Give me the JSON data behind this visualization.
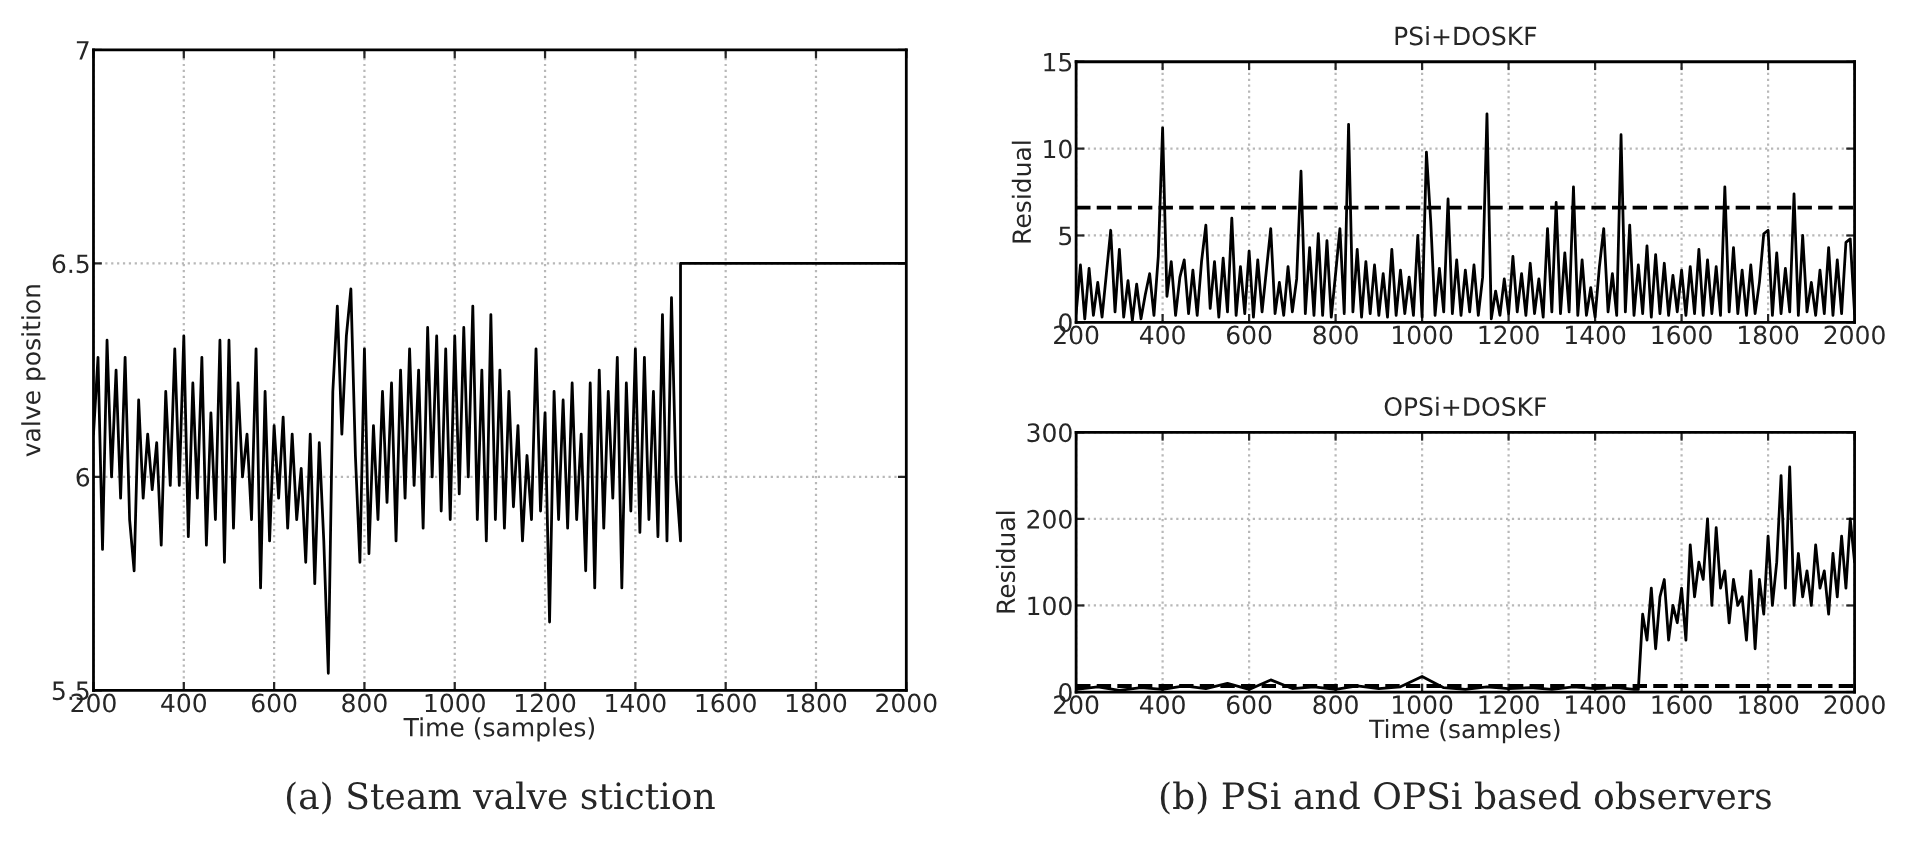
{
  "chart_data": [
    {
      "type": "line",
      "xlabel": "Time (samples)",
      "ylabel": "valve position",
      "xlim": [
        200,
        2000
      ],
      "ylim": [
        5.5,
        7
      ],
      "xticks": [
        200,
        400,
        600,
        800,
        1000,
        1200,
        1400,
        1600,
        1800,
        2000
      ],
      "yticks": [
        5.5,
        6,
        6.5,
        7
      ],
      "grid": true,
      "annotations": [
        "(a) Steam valve stiction"
      ],
      "series": [
        {
          "color": "#000000",
          "x": [
            200,
            210,
            220,
            230,
            240,
            250,
            260,
            270,
            280,
            290,
            300,
            310,
            320,
            330,
            340,
            350,
            360,
            370,
            380,
            390,
            400,
            410,
            420,
            430,
            440,
            450,
            460,
            470,
            480,
            490,
            500,
            510,
            520,
            530,
            540,
            550,
            560,
            570,
            580,
            590,
            600,
            610,
            620,
            630,
            640,
            650,
            660,
            670,
            680,
            690,
            700,
            710,
            720,
            730,
            740,
            750,
            760,
            770,
            780,
            790,
            800,
            810,
            820,
            830,
            840,
            850,
            860,
            870,
            880,
            890,
            900,
            910,
            920,
            930,
            940,
            950,
            960,
            970,
            980,
            990,
            1000,
            1010,
            1020,
            1030,
            1040,
            1050,
            1060,
            1070,
            1080,
            1090,
            1100,
            1110,
            1120,
            1130,
            1140,
            1150,
            1160,
            1170,
            1180,
            1190,
            1200,
            1210,
            1220,
            1230,
            1240,
            1250,
            1260,
            1270,
            1280,
            1290,
            1300,
            1310,
            1320,
            1330,
            1340,
            1350,
            1360,
            1370,
            1380,
            1390,
            1400,
            1410,
            1420,
            1430,
            1440,
            1450,
            1460,
            1470,
            1480,
            1490,
            1500,
            1500,
            2000
          ],
          "values": [
            6.1,
            6.28,
            5.83,
            6.32,
            6.0,
            6.25,
            5.95,
            6.28,
            5.9,
            5.78,
            6.18,
            5.95,
            6.1,
            5.97,
            6.08,
            5.84,
            6.2,
            5.98,
            6.3,
            5.98,
            6.33,
            5.86,
            6.22,
            5.95,
            6.28,
            5.84,
            6.15,
            5.9,
            6.32,
            5.8,
            6.32,
            5.88,
            6.22,
            6.0,
            6.1,
            5.9,
            6.3,
            5.74,
            6.2,
            5.85,
            6.12,
            5.95,
            6.14,
            5.88,
            6.1,
            5.9,
            6.02,
            5.8,
            6.1,
            5.75,
            6.08,
            5.85,
            5.54,
            6.2,
            6.4,
            6.1,
            6.33,
            6.44,
            6.05,
            5.8,
            6.3,
            5.82,
            6.12,
            5.9,
            6.2,
            5.94,
            6.22,
            5.85,
            6.25,
            5.95,
            6.3,
            5.98,
            6.25,
            5.88,
            6.35,
            6.0,
            6.33,
            5.92,
            6.3,
            5.9,
            6.33,
            5.96,
            6.35,
            6.0,
            6.4,
            5.9,
            6.25,
            5.85,
            6.38,
            5.9,
            6.25,
            5.88,
            6.2,
            5.93,
            6.12,
            5.85,
            6.05,
            5.9,
            6.3,
            5.92,
            6.15,
            5.66,
            6.2,
            5.9,
            6.18,
            5.88,
            6.22,
            5.9,
            6.1,
            5.78,
            6.22,
            5.74,
            6.25,
            5.88,
            6.2,
            5.95,
            6.28,
            5.74,
            6.22,
            5.92,
            6.3,
            5.87,
            6.28,
            5.9,
            6.2,
            5.86,
            6.38,
            5.85,
            6.42,
            6.0,
            5.85,
            6.5,
            6.5
          ]
        }
      ]
    },
    {
      "type": "line",
      "title": "PSi+DOSKF",
      "ylabel": "Residual",
      "xlim": [
        200,
        2000
      ],
      "ylim": [
        0,
        15
      ],
      "xticks": [
        200,
        400,
        600,
        800,
        1000,
        1200,
        1400,
        1600,
        1800,
        2000
      ],
      "yticks": [
        0,
        5,
        10,
        15
      ],
      "grid": true,
      "ref_lines": [
        {
          "axis": "y",
          "value": 6.6,
          "color": "#000000",
          "line_style": "dashed"
        }
      ],
      "series": [
        {
          "color": "#000000",
          "x": [
            200,
            210,
            220,
            230,
            240,
            250,
            260,
            270,
            280,
            290,
            300,
            310,
            320,
            330,
            340,
            350,
            360,
            370,
            380,
            390,
            400,
            410,
            420,
            430,
            440,
            450,
            460,
            470,
            480,
            490,
            500,
            510,
            520,
            530,
            540,
            550,
            560,
            570,
            580,
            590,
            600,
            610,
            620,
            630,
            640,
            650,
            660,
            670,
            680,
            690,
            700,
            710,
            720,
            730,
            740,
            750,
            760,
            770,
            780,
            790,
            800,
            810,
            820,
            830,
            840,
            850,
            860,
            870,
            880,
            890,
            900,
            910,
            920,
            930,
            940,
            950,
            960,
            970,
            980,
            990,
            1000,
            1010,
            1020,
            1030,
            1040,
            1050,
            1060,
            1070,
            1080,
            1090,
            1100,
            1110,
            1120,
            1130,
            1140,
            1150,
            1160,
            1170,
            1180,
            1190,
            1200,
            1210,
            1220,
            1230,
            1240,
            1250,
            1260,
            1270,
            1280,
            1290,
            1300,
            1310,
            1320,
            1330,
            1340,
            1350,
            1360,
            1370,
            1380,
            1390,
            1400,
            1410,
            1420,
            1430,
            1440,
            1450,
            1460,
            1470,
            1480,
            1490,
            1500,
            1510,
            1520,
            1530,
            1540,
            1550,
            1560,
            1570,
            1580,
            1590,
            1600,
            1610,
            1620,
            1630,
            1640,
            1650,
            1660,
            1670,
            1680,
            1690,
            1700,
            1710,
            1720,
            1730,
            1740,
            1750,
            1760,
            1770,
            1780,
            1790,
            1800,
            1810,
            1820,
            1830,
            1840,
            1850,
            1860,
            1870,
            1880,
            1890,
            1900,
            1910,
            1920,
            1930,
            1940,
            1950,
            1960,
            1970,
            1980,
            1990,
            2000
          ],
          "values": [
            0.5,
            3.3,
            0.2,
            3.1,
            0.4,
            2.3,
            0.3,
            2.8,
            5.3,
            0.6,
            4.2,
            0.3,
            2.4,
            0.1,
            2.2,
            0.2,
            1.6,
            2.8,
            0.4,
            3.8,
            11.2,
            1.5,
            3.5,
            0.4,
            2.6,
            3.6,
            0.5,
            3.0,
            0.4,
            3.5,
            5.6,
            0.8,
            3.5,
            0.3,
            3.7,
            0.6,
            6.0,
            0.4,
            3.2,
            0.5,
            4.1,
            0.3,
            3.6,
            0.6,
            3.0,
            5.4,
            0.5,
            2.3,
            0.4,
            3.2,
            0.6,
            2.5,
            8.7,
            0.5,
            4.3,
            0.4,
            5.1,
            0.4,
            4.7,
            0.3,
            2.8,
            5.4,
            0.5,
            11.4,
            0.6,
            4.2,
            0.3,
            3.5,
            0.5,
            3.3,
            0.4,
            2.8,
            0.3,
            4.2,
            0.4,
            3.0,
            0.5,
            2.6,
            0.4,
            5.0,
            0.3,
            9.8,
            5.8,
            0.4,
            3.1,
            0.6,
            7.1,
            0.5,
            3.6,
            0.4,
            3.0,
            0.6,
            3.3,
            0.4,
            2.6,
            12.0,
            0.2,
            1.8,
            0.4,
            2.5,
            0.5,
            3.8,
            0.6,
            2.8,
            0.4,
            3.4,
            0.5,
            2.5,
            0.3,
            5.4,
            0.6,
            6.9,
            0.5,
            4.0,
            0.6,
            7.8,
            0.4,
            3.6,
            0.4,
            2.0,
            0.3,
            3.2,
            5.4,
            0.6,
            2.8,
            0.4,
            10.8,
            0.6,
            5.6,
            0.4,
            3.3,
            0.5,
            4.4,
            0.3,
            3.9,
            0.5,
            3.4,
            0.4,
            2.7,
            0.6,
            3.0,
            0.4,
            3.2,
            0.5,
            4.2,
            0.4,
            3.6,
            0.5,
            3.2,
            0.4,
            7.8,
            0.6,
            4.3,
            0.5,
            3.0,
            0.4,
            3.3,
            0.5,
            2.3,
            5.1,
            5.3,
            0.4,
            4.0,
            0.5,
            3.1,
            0.6,
            7.4,
            0.4,
            5.0,
            0.6,
            2.3,
            0.4,
            3.0,
            0.5,
            4.3,
            0.4,
            3.6,
            0.5,
            4.6,
            4.8,
            0.5
          ]
        }
      ]
    },
    {
      "type": "line",
      "title": "OPSi+DOSKF",
      "xlabel": "Time (samples)",
      "ylabel": "Residual",
      "xlim": [
        200,
        2000
      ],
      "ylim": [
        0,
        300
      ],
      "xticks": [
        200,
        400,
        600,
        800,
        1000,
        1200,
        1400,
        1600,
        1800,
        2000
      ],
      "yticks": [
        0,
        100,
        200,
        300
      ],
      "grid": true,
      "annotations": [
        "(b) PSi and OPSi based observers"
      ],
      "ref_lines": [
        {
          "axis": "y",
          "value": 7,
          "color": "#000000",
          "line_style": "dashed"
        }
      ],
      "series": [
        {
          "color": "#000000",
          "x": [
            200,
            250,
            300,
            350,
            400,
            450,
            500,
            550,
            600,
            650,
            700,
            750,
            800,
            850,
            900,
            950,
            1000,
            1050,
            1100,
            1150,
            1200,
            1250,
            1300,
            1350,
            1400,
            1450,
            1490,
            1500,
            1510,
            1520,
            1530,
            1540,
            1550,
            1560,
            1570,
            1580,
            1590,
            1600,
            1610,
            1620,
            1630,
            1640,
            1650,
            1660,
            1670,
            1680,
            1690,
            1700,
            1710,
            1720,
            1730,
            1740,
            1750,
            1760,
            1770,
            1780,
            1790,
            1800,
            1810,
            1820,
            1830,
            1840,
            1850,
            1860,
            1870,
            1880,
            1890,
            1900,
            1910,
            1920,
            1930,
            1940,
            1950,
            1960,
            1970,
            1980,
            1990,
            2000
          ],
          "values": [
            3,
            6,
            2,
            5,
            3,
            7,
            4,
            10,
            3,
            14,
            4,
            6,
            3,
            7,
            4,
            6,
            18,
            5,
            3,
            6,
            4,
            5,
            3,
            6,
            4,
            5,
            3,
            3,
            90,
            60,
            120,
            50,
            110,
            130,
            60,
            100,
            80,
            120,
            60,
            170,
            110,
            150,
            130,
            200,
            100,
            190,
            120,
            140,
            80,
            130,
            100,
            110,
            60,
            140,
            50,
            130,
            90,
            180,
            100,
            150,
            250,
            120,
            260,
            100,
            160,
            110,
            140,
            100,
            170,
            120,
            140,
            90,
            160,
            110,
            180,
            120,
            200,
            150
          ]
        }
      ]
    }
  ]
}
